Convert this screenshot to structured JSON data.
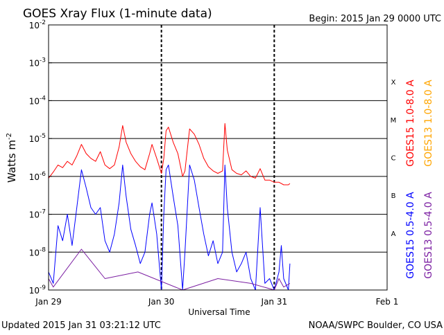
{
  "chart_data": {
    "type": "line",
    "title": "GOES Xray Flux (1-minute data)",
    "begin_label": "Begin:  2015 Jan 29 0000 UTC",
    "ylabel_text": "Watts m",
    "ylabel_sup": "-2",
    "xlabel": "Universal Time",
    "updated": "Updated 2015 Jan 31 03:21:12 UTC",
    "source": "NOAA/SWPC Boulder, CO USA",
    "y_scale": "log",
    "ylim": [
      1e-09,
      0.01
    ],
    "y_ticks": [
      {
        "value": 1e-09,
        "base": "10",
        "exp": "-9"
      },
      {
        "value": 1e-08,
        "base": "10",
        "exp": "-8"
      },
      {
        "value": 1e-07,
        "base": "10",
        "exp": "-7"
      },
      {
        "value": 1e-06,
        "base": "10",
        "exp": "-6"
      },
      {
        "value": 1e-05,
        "base": "10",
        "exp": "-5"
      },
      {
        "value": 0.0001,
        "base": "10",
        "exp": "-4"
      },
      {
        "value": 0.001,
        "base": "10",
        "exp": "-3"
      },
      {
        "value": 0.01,
        "base": "10",
        "exp": "-2"
      }
    ],
    "xlim": [
      "2015-01-29 00:00",
      "2015-02-01 00:00"
    ],
    "x_ticks": [
      {
        "t": "2015-01-29 00:00",
        "label": "Jan 29"
      },
      {
        "t": "2015-01-30 00:00",
        "label": "Jan 30"
      },
      {
        "t": "2015-01-31 00:00",
        "label": "Jan 31"
      },
      {
        "t": "2015-02-01 00:00",
        "label": "Feb 1"
      }
    ],
    "flare_classes": [
      {
        "label": "X",
        "lower": 0.0001
      },
      {
        "label": "M",
        "lower": 1e-05
      },
      {
        "label": "C",
        "lower": 1e-06
      },
      {
        "label": "B",
        "lower": 1e-07
      },
      {
        "label": "A",
        "lower": 1e-08
      }
    ],
    "grid": "horizontal lines at each decade; dashed vertical lines at day boundaries",
    "legend_placement": "right, vertical text",
    "series": [
      {
        "name": "GOES15 1.0-8.0 A",
        "color": "#ff0000",
        "points": [
          [
            "2015-01-29 00:00",
            9e-07
          ],
          [
            "2015-01-29 01:00",
            1.3e-06
          ],
          [
            "2015-01-29 02:00",
            2e-06
          ],
          [
            "2015-01-29 03:00",
            1.7e-06
          ],
          [
            "2015-01-29 04:00",
            2.5e-06
          ],
          [
            "2015-01-29 05:00",
            2e-06
          ],
          [
            "2015-01-29 06:00",
            3.5e-06
          ],
          [
            "2015-01-29 07:00",
            7e-06
          ],
          [
            "2015-01-29 08:00",
            4e-06
          ],
          [
            "2015-01-29 09:00",
            3e-06
          ],
          [
            "2015-01-29 10:00",
            2.5e-06
          ],
          [
            "2015-01-29 11:00",
            4.5e-06
          ],
          [
            "2015-01-29 12:00",
            2e-06
          ],
          [
            "2015-01-29 13:00",
            1.6e-06
          ],
          [
            "2015-01-29 14:00",
            2e-06
          ],
          [
            "2015-01-29 15:00",
            6e-06
          ],
          [
            "2015-01-29 15:45",
            2.2e-05
          ],
          [
            "2015-01-29 16:30",
            8e-06
          ],
          [
            "2015-01-29 17:30",
            4e-06
          ],
          [
            "2015-01-29 18:30",
            2.5e-06
          ],
          [
            "2015-01-29 19:30",
            1.8e-06
          ],
          [
            "2015-01-29 20:30",
            1.5e-06
          ],
          [
            "2015-01-29 21:30",
            4e-06
          ],
          [
            "2015-01-29 22:00",
            7e-06
          ],
          [
            "2015-01-29 23:00",
            3e-06
          ],
          [
            "2015-01-30 00:00",
            1.2e-06
          ],
          [
            "2015-01-30 00:30",
            3e-06
          ],
          [
            "2015-01-30 01:00",
            1.6e-05
          ],
          [
            "2015-01-30 01:30",
            2e-05
          ],
          [
            "2015-01-30 02:30",
            8e-06
          ],
          [
            "2015-01-30 03:30",
            4e-06
          ],
          [
            "2015-01-30 04:30",
            1e-06
          ],
          [
            "2015-01-30 05:00",
            1.4e-06
          ],
          [
            "2015-01-30 06:00",
            1.8e-05
          ],
          [
            "2015-01-30 07:00",
            1.3e-05
          ],
          [
            "2015-01-30 08:00",
            7e-06
          ],
          [
            "2015-01-30 09:00",
            3e-06
          ],
          [
            "2015-01-30 10:00",
            1.8e-06
          ],
          [
            "2015-01-30 11:00",
            1.4e-06
          ],
          [
            "2015-01-30 12:00",
            1.2e-06
          ],
          [
            "2015-01-30 13:00",
            1.4e-06
          ],
          [
            "2015-01-30 13:30",
            2.5e-05
          ],
          [
            "2015-01-30 14:00",
            5e-06
          ],
          [
            "2015-01-30 15:00",
            1.5e-06
          ],
          [
            "2015-01-30 16:00",
            1.2e-06
          ],
          [
            "2015-01-30 17:00",
            1.1e-06
          ],
          [
            "2015-01-30 18:00",
            1.4e-06
          ],
          [
            "2015-01-30 19:00",
            1e-06
          ],
          [
            "2015-01-30 20:00",
            9e-07
          ],
          [
            "2015-01-30 21:00",
            1.6e-06
          ],
          [
            "2015-01-30 22:00",
            8e-07
          ],
          [
            "2015-01-30 23:00",
            8e-07
          ],
          [
            "2015-01-31 00:00",
            7e-07
          ],
          [
            "2015-01-31 01:00",
            7e-07
          ],
          [
            "2015-01-31 02:00",
            6e-07
          ],
          [
            "2015-01-31 03:00",
            6e-07
          ],
          [
            "2015-01-31 03:20",
            6.5e-07
          ]
        ]
      },
      {
        "name": "GOES13 1.0-8.0 A",
        "color": "#ffa500",
        "points": []
      },
      {
        "name": "GOES15 0.5-4.0 A",
        "color": "#0000ff",
        "points": [
          [
            "2015-01-29 00:00",
            3e-09
          ],
          [
            "2015-01-29 01:00",
            1.5e-09
          ],
          [
            "2015-01-29 02:00",
            5e-08
          ],
          [
            "2015-01-29 03:00",
            2e-08
          ],
          [
            "2015-01-29 04:00",
            1e-07
          ],
          [
            "2015-01-29 05:00",
            1.5e-08
          ],
          [
            "2015-01-29 06:00",
            1.5e-07
          ],
          [
            "2015-01-29 07:00",
            1.5e-06
          ],
          [
            "2015-01-29 08:00",
            5e-07
          ],
          [
            "2015-01-29 09:00",
            1.5e-07
          ],
          [
            "2015-01-29 10:00",
            1e-07
          ],
          [
            "2015-01-29 11:00",
            1.5e-07
          ],
          [
            "2015-01-29 12:00",
            2e-08
          ],
          [
            "2015-01-29 13:00",
            1e-08
          ],
          [
            "2015-01-29 14:00",
            3e-08
          ],
          [
            "2015-01-29 15:00",
            2e-07
          ],
          [
            "2015-01-29 15:45",
            2e-06
          ],
          [
            "2015-01-29 16:30",
            3e-07
          ],
          [
            "2015-01-29 17:30",
            4e-08
          ],
          [
            "2015-01-29 18:30",
            1.5e-08
          ],
          [
            "2015-01-29 19:30",
            5e-09
          ],
          [
            "2015-01-29 20:30",
            1e-08
          ],
          [
            "2015-01-29 21:30",
            1e-07
          ],
          [
            "2015-01-29 22:00",
            2e-07
          ],
          [
            "2015-01-29 23:00",
            3e-08
          ],
          [
            "2015-01-30 00:00",
            1e-09
          ],
          [
            "2015-01-30 00:30",
            1e-07
          ],
          [
            "2015-01-30 01:00",
            1.5e-06
          ],
          [
            "2015-01-30 01:30",
            2e-06
          ],
          [
            "2015-01-30 02:30",
            3e-07
          ],
          [
            "2015-01-30 03:30",
            5e-08
          ],
          [
            "2015-01-30 04:30",
            1e-09
          ],
          [
            "2015-01-30 05:00",
            1e-08
          ],
          [
            "2015-01-30 06:00",
            2e-06
          ],
          [
            "2015-01-30 07:00",
            8e-07
          ],
          [
            "2015-01-30 08:00",
            1.5e-07
          ],
          [
            "2015-01-30 09:00",
            3e-08
          ],
          [
            "2015-01-30 10:00",
            8e-09
          ],
          [
            "2015-01-30 11:00",
            2e-08
          ],
          [
            "2015-01-30 12:00",
            5e-09
          ],
          [
            "2015-01-30 13:00",
            1e-08
          ],
          [
            "2015-01-30 13:30",
            2e-06
          ],
          [
            "2015-01-30 14:00",
            1.5e-07
          ],
          [
            "2015-01-30 15:00",
            1e-08
          ],
          [
            "2015-01-30 16:00",
            3e-09
          ],
          [
            "2015-01-30 17:00",
            5e-09
          ],
          [
            "2015-01-30 18:00",
            1e-08
          ],
          [
            "2015-01-30 19:00",
            2e-09
          ],
          [
            "2015-01-30 20:00",
            1e-09
          ],
          [
            "2015-01-30 21:00",
            1.5e-07
          ],
          [
            "2015-01-30 22:00",
            1.5e-09
          ],
          [
            "2015-01-30 23:00",
            2e-09
          ],
          [
            "2015-01-31 00:00",
            1e-09
          ],
          [
            "2015-01-31 01:00",
            3e-09
          ],
          [
            "2015-01-31 01:30",
            1.5e-08
          ],
          [
            "2015-01-31 02:00",
            2e-09
          ],
          [
            "2015-01-31 03:00",
            1e-09
          ],
          [
            "2015-01-31 03:20",
            5e-09
          ]
        ]
      },
      {
        "name": "GOES13 0.5-4.0 A",
        "color": "#7b1fa2",
        "points": [
          [
            "2015-01-29 00:00",
            2e-09
          ],
          [
            "2015-01-29 01:00",
            1.2e-09
          ],
          [
            "2015-01-29 07:00",
            1.2e-08
          ],
          [
            "2015-01-29 12:00",
            2e-09
          ],
          [
            "2015-01-29 19:00",
            3e-09
          ],
          [
            "2015-01-30 04:30",
            1e-09
          ],
          [
            "2015-01-30 12:00",
            2e-09
          ],
          [
            "2015-01-30 19:00",
            1.5e-09
          ],
          [
            "2015-01-31 00:00",
            1e-09
          ],
          [
            "2015-01-31 01:00",
            2e-09
          ],
          [
            "2015-01-31 02:00",
            1.2e-09
          ],
          [
            "2015-01-31 03:20",
            1.5e-09
          ]
        ]
      }
    ]
  }
}
